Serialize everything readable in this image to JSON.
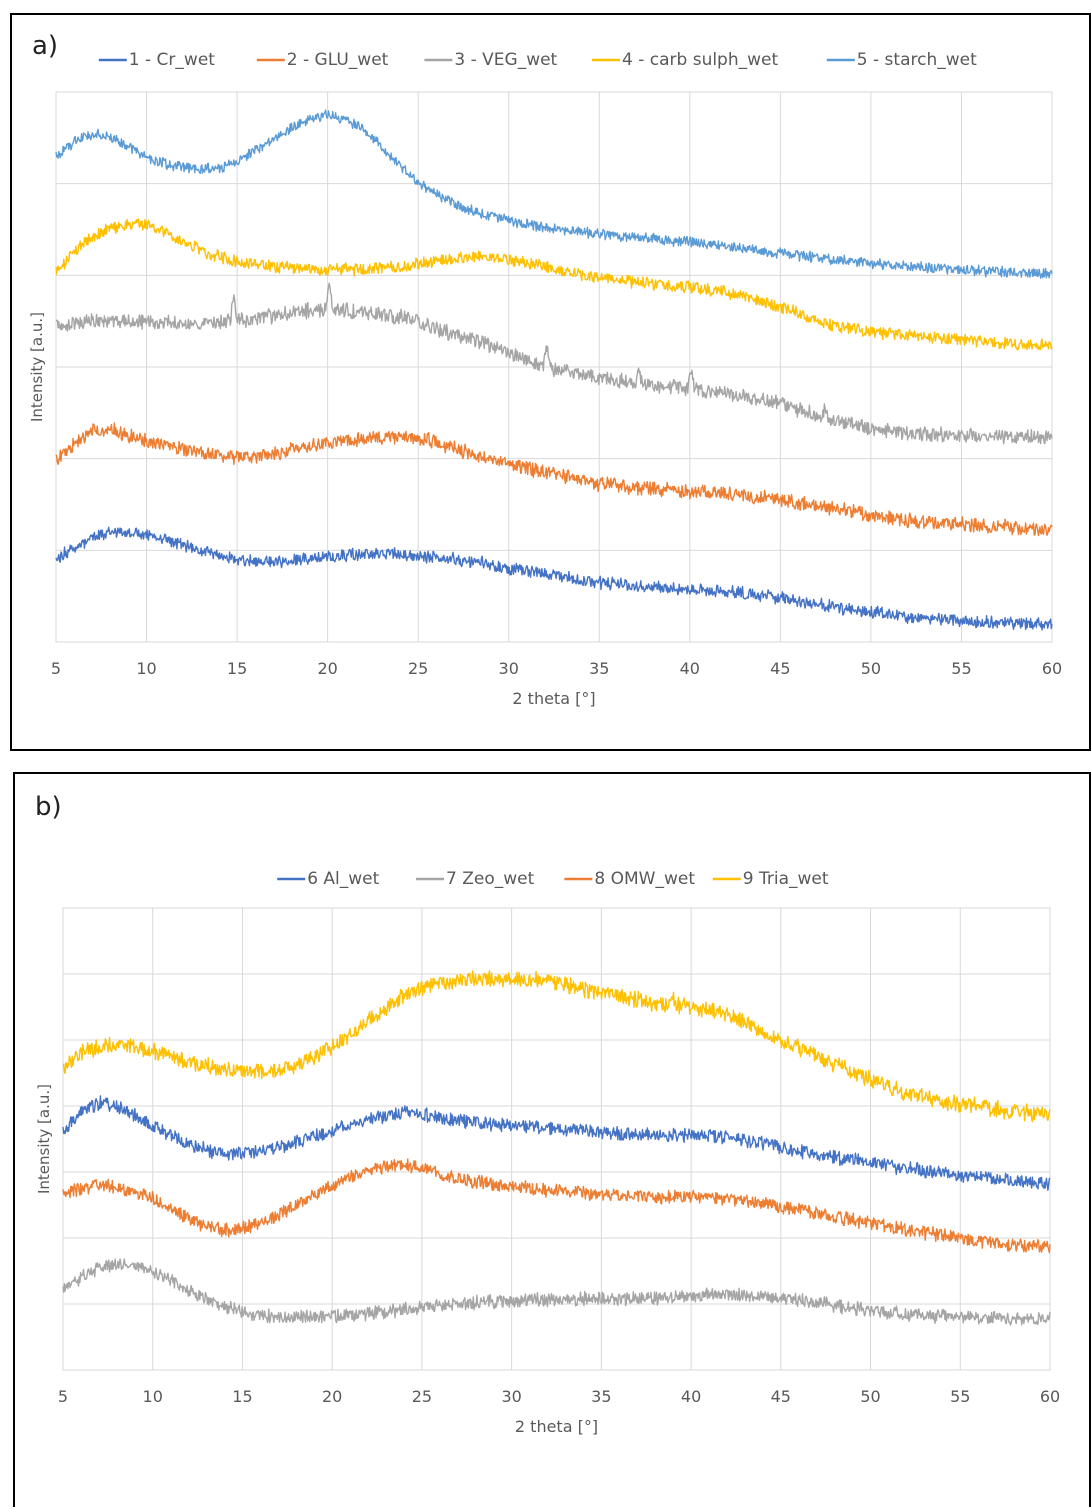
{
  "chart_data": [
    {
      "panel_label": "a)",
      "type": "line",
      "xlabel": "2 theta [°]",
      "ylabel": "Intensity [a.u.]",
      "xlim": [
        5,
        60
      ],
      "x_ticks": [
        "5",
        "10",
        "15",
        "20",
        "25",
        "30",
        "35",
        "40",
        "45",
        "50",
        "55",
        "60"
      ],
      "grid": true,
      "legend_position": "top",
      "y_gridlines": 6,
      "series": [
        {
          "name": "1 - Cr_wet",
          "color": "#4472c4",
          "noise": 0.06,
          "x": [
            5,
            6,
            7,
            8,
            9,
            10,
            11,
            12,
            13,
            14,
            15,
            16,
            17,
            18,
            20,
            22,
            24,
            25,
            26,
            28,
            30,
            32,
            35,
            38,
            40,
            42,
            45,
            48,
            50,
            52,
            55,
            58,
            60
          ],
          "y": [
            0.9,
            1.03,
            1.14,
            1.19,
            1.2,
            1.18,
            1.12,
            1.06,
            1.0,
            0.94,
            0.9,
            0.88,
            0.88,
            0.89,
            0.93,
            0.95,
            0.95,
            0.94,
            0.93,
            0.88,
            0.8,
            0.75,
            0.65,
            0.59,
            0.58,
            0.55,
            0.48,
            0.38,
            0.33,
            0.28,
            0.23,
            0.2,
            0.19
          ]
        },
        {
          "name": "2 - GLU_wet",
          "color": "#ed7d31",
          "noise": 0.07,
          "x": [
            5,
            6,
            7,
            8,
            9,
            10,
            11,
            12,
            13,
            14,
            15,
            16,
            17,
            18,
            20,
            22,
            24,
            25,
            26,
            28,
            30,
            32,
            35,
            38,
            40,
            42,
            45,
            48,
            50,
            52,
            55,
            58,
            60
          ],
          "y": [
            2.0,
            2.15,
            2.3,
            2.32,
            2.26,
            2.2,
            2.15,
            2.1,
            2.06,
            2.03,
            2.02,
            2.03,
            2.06,
            2.1,
            2.17,
            2.22,
            2.25,
            2.23,
            2.18,
            2.05,
            1.95,
            1.85,
            1.72,
            1.67,
            1.65,
            1.62,
            1.55,
            1.45,
            1.38,
            1.33,
            1.28,
            1.25,
            1.24
          ]
        },
        {
          "name": "3 - VEG_wet",
          "color": "#a5a5a5",
          "noise": 0.07,
          "x": [
            5,
            6,
            7,
            8,
            9,
            10,
            11,
            12,
            13,
            14,
            15,
            16,
            17,
            18,
            20,
            22,
            24,
            25,
            26,
            28,
            30,
            32,
            35,
            38,
            40,
            42,
            45,
            48,
            50,
            52,
            55,
            58,
            60
          ],
          "y": [
            3.45,
            3.48,
            3.5,
            3.51,
            3.5,
            3.49,
            3.48,
            3.47,
            3.47,
            3.49,
            3.51,
            3.53,
            3.56,
            3.6,
            3.63,
            3.6,
            3.55,
            3.5,
            3.42,
            3.3,
            3.15,
            3.0,
            2.88,
            2.8,
            2.76,
            2.72,
            2.6,
            2.42,
            2.33,
            2.28,
            2.25,
            2.24,
            2.24
          ],
          "peaks": [
            [
              14.8,
              0.22
            ],
            [
              20.1,
              0.22
            ],
            [
              32.1,
              0.22
            ],
            [
              37.2,
              0.14
            ],
            [
              40.1,
              0.2
            ],
            [
              47.5,
              0.12
            ]
          ]
        },
        {
          "name": "4 - carb sulph_wet",
          "color": "#ffc000",
          "noise": 0.06,
          "x": [
            5,
            6,
            7,
            8,
            9,
            10,
            11,
            12,
            13,
            14,
            15,
            16,
            17,
            18,
            20,
            22,
            24,
            25,
            26,
            28,
            30,
            32,
            35,
            38,
            40,
            42,
            45,
            48,
            50,
            52,
            55,
            58,
            60
          ],
          "y": [
            4.05,
            4.25,
            4.42,
            4.52,
            4.56,
            4.55,
            4.47,
            4.37,
            4.27,
            4.2,
            4.15,
            4.12,
            4.1,
            4.08,
            4.06,
            4.07,
            4.1,
            4.13,
            4.16,
            4.2,
            4.17,
            4.1,
            3.97,
            3.9,
            3.87,
            3.82,
            3.65,
            3.45,
            3.38,
            3.35,
            3.3,
            3.25,
            3.23
          ]
        },
        {
          "name": "5 - starch_wet",
          "color": "#5b9bd5",
          "noise": 0.05,
          "x": [
            5,
            6,
            7,
            8,
            9,
            10,
            11,
            12,
            13,
            14,
            15,
            16,
            17,
            18,
            19,
            20,
            21,
            22,
            23,
            24,
            25,
            26,
            27,
            28,
            30,
            32,
            35,
            38,
            40,
            42,
            45,
            48,
            50,
            52,
            55,
            58,
            60
          ],
          "y": [
            5.3,
            5.45,
            5.55,
            5.52,
            5.4,
            5.28,
            5.22,
            5.18,
            5.16,
            5.17,
            5.24,
            5.36,
            5.48,
            5.6,
            5.7,
            5.75,
            5.7,
            5.58,
            5.4,
            5.2,
            5.02,
            4.88,
            4.78,
            4.7,
            4.6,
            4.52,
            4.45,
            4.4,
            4.36,
            4.32,
            4.24,
            4.17,
            4.13,
            4.1,
            4.06,
            4.03,
            4.02
          ]
        }
      ]
    },
    {
      "panel_label": "b)",
      "type": "line",
      "xlabel": "2 theta [°]",
      "ylabel": "Intensity [a.u.]",
      "xlim": [
        5,
        60
      ],
      "x_ticks": [
        "5",
        "10",
        "15",
        "20",
        "25",
        "30",
        "35",
        "40",
        "45",
        "50",
        "55",
        "60"
      ],
      "grid": true,
      "legend_position": "top",
      "y_gridlines": 7,
      "series": [
        {
          "name": "6 Al_wet",
          "color": "#4472c4",
          "noise": 0.09,
          "x": [
            5,
            6,
            7,
            8,
            9,
            10,
            11,
            12,
            13,
            14,
            15,
            16,
            17,
            18,
            20,
            22,
            24,
            25,
            26,
            28,
            30,
            32,
            35,
            38,
            40,
            42,
            45,
            48,
            50,
            52,
            55,
            58,
            60
          ],
          "y": [
            3.65,
            3.9,
            4.05,
            4.0,
            3.85,
            3.7,
            3.55,
            3.42,
            3.33,
            3.28,
            3.28,
            3.32,
            3.38,
            3.45,
            3.62,
            3.8,
            3.9,
            3.88,
            3.82,
            3.75,
            3.7,
            3.67,
            3.6,
            3.55,
            3.56,
            3.53,
            3.38,
            3.22,
            3.15,
            3.05,
            2.95,
            2.87,
            2.82
          ]
        },
        {
          "name": "7 Zeo_wet",
          "color": "#a5a5a5",
          "noise": 0.09,
          "x": [
            5,
            6,
            7,
            8,
            9,
            10,
            11,
            12,
            13,
            14,
            15,
            16,
            17,
            18,
            20,
            22,
            24,
            25,
            26,
            28,
            30,
            32,
            35,
            38,
            40,
            42,
            45,
            48,
            50,
            52,
            55,
            58,
            60
          ],
          "y": [
            1.2,
            1.4,
            1.55,
            1.6,
            1.57,
            1.48,
            1.35,
            1.2,
            1.07,
            0.96,
            0.88,
            0.83,
            0.8,
            0.8,
            0.82,
            0.86,
            0.92,
            0.95,
            0.98,
            1.02,
            1.05,
            1.07,
            1.08,
            1.08,
            1.12,
            1.15,
            1.1,
            0.98,
            0.9,
            0.84,
            0.8,
            0.78,
            0.78
          ]
        },
        {
          "name": "8 OMW_wet",
          "color": "#ed7d31",
          "noise": 0.09,
          "x": [
            5,
            6,
            7,
            8,
            9,
            10,
            11,
            12,
            13,
            14,
            15,
            16,
            17,
            18,
            20,
            22,
            24,
            25,
            26,
            28,
            30,
            32,
            35,
            38,
            40,
            42,
            45,
            48,
            50,
            52,
            55,
            58,
            60
          ],
          "y": [
            2.65,
            2.75,
            2.8,
            2.78,
            2.7,
            2.6,
            2.45,
            2.3,
            2.18,
            2.12,
            2.14,
            2.22,
            2.35,
            2.5,
            2.8,
            3.05,
            3.12,
            3.07,
            2.97,
            2.85,
            2.78,
            2.73,
            2.66,
            2.62,
            2.63,
            2.6,
            2.48,
            2.32,
            2.22,
            2.12,
            2.0,
            1.9,
            1.85
          ]
        },
        {
          "name": "9 Tria_wet",
          "color": "#ffc000",
          "noise": 0.11,
          "x": [
            5,
            6,
            7,
            8,
            9,
            10,
            11,
            12,
            13,
            14,
            15,
            16,
            17,
            18,
            20,
            22,
            24,
            25,
            26,
            28,
            30,
            32,
            35,
            38,
            40,
            42,
            45,
            48,
            50,
            52,
            55,
            58,
            60
          ],
          "y": [
            4.55,
            4.8,
            4.9,
            4.93,
            4.9,
            4.83,
            4.75,
            4.67,
            4.6,
            4.55,
            4.52,
            4.52,
            4.55,
            4.62,
            4.9,
            5.3,
            5.68,
            5.8,
            5.88,
            5.92,
            5.93,
            5.9,
            5.72,
            5.55,
            5.5,
            5.4,
            5.0,
            4.62,
            4.4,
            4.2,
            4.02,
            3.92,
            3.87
          ],
          "peaks": [
            [
              39.0,
              0.15
            ]
          ]
        }
      ]
    }
  ]
}
